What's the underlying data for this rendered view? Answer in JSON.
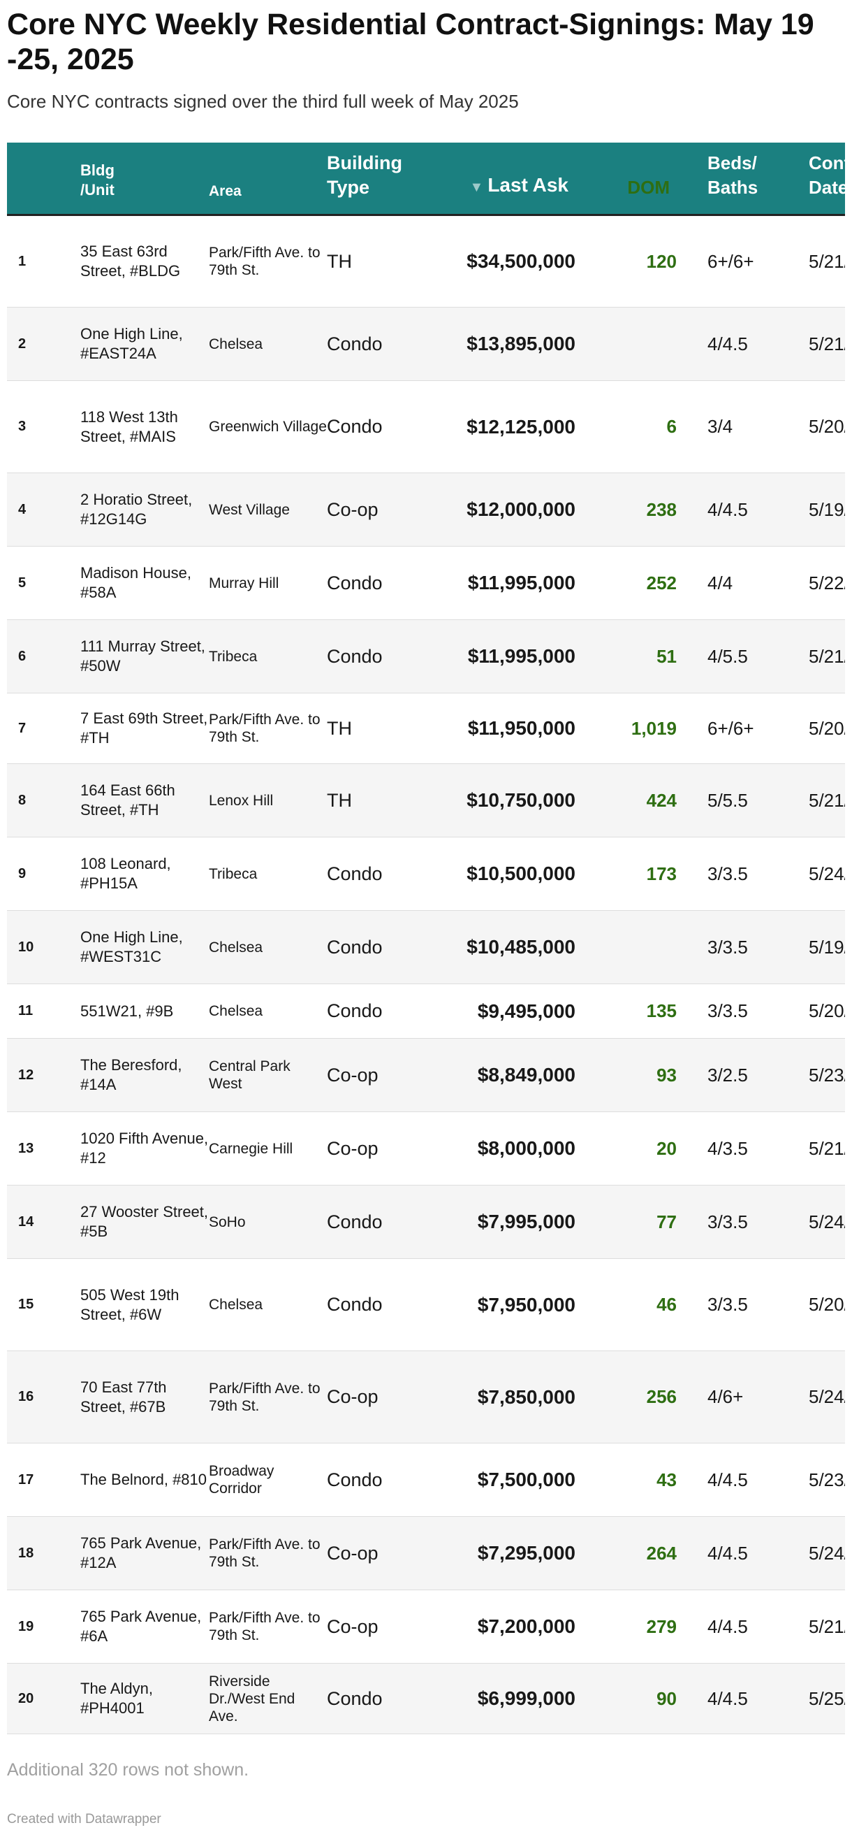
{
  "title": "Core NYC Weekly Residential Contract-Signings: May 19 -25, 2025",
  "subtitle": "Core NYC contracts signed over the third full week of May 2025",
  "columns": {
    "rank": "",
    "bldg": "Bldg /Unit",
    "area": "Area",
    "type": "Building Type",
    "ask": "Last Ask",
    "dom": "DOM",
    "beds": "Beds/ Baths",
    "date": "Contract Date"
  },
  "sort_indicator": "▼",
  "rows": [
    {
      "rank": "1",
      "bldg": "35 East 63rd Street, #BLDG",
      "area": "Park/Fifth Ave. to 79th St.",
      "type": "TH",
      "ask": "$34,500,000",
      "dom": "120",
      "beds": "6+/6+",
      "date": "5/21/"
    },
    {
      "rank": "2",
      "bldg": "One High Line, #EAST24A",
      "area": "Chelsea",
      "type": "Condo",
      "ask": "$13,895,000",
      "dom": "",
      "beds": "4/4.5",
      "date": "5/21/"
    },
    {
      "rank": "3",
      "bldg": "118 West 13th Street, #MAIS",
      "area": "Greenwich Village",
      "type": "Condo",
      "ask": "$12,125,000",
      "dom": "6",
      "beds": "3/4",
      "date": "5/20/"
    },
    {
      "rank": "4",
      "bldg": "2 Horatio Street, #12G14G",
      "area": "West Village",
      "type": "Co-op",
      "ask": "$12,000,000",
      "dom": "238",
      "beds": "4/4.5",
      "date": "5/19/"
    },
    {
      "rank": "5",
      "bldg": "Madison House, #58A",
      "area": "Murray Hill",
      "type": "Condo",
      "ask": "$11,995,000",
      "dom": "252",
      "beds": "4/4",
      "date": "5/22/"
    },
    {
      "rank": "6",
      "bldg": "111 Murray Street, #50W",
      "area": "Tribeca",
      "type": "Condo",
      "ask": "$11,995,000",
      "dom": "51",
      "beds": "4/5.5",
      "date": "5/21/"
    },
    {
      "rank": "7",
      "bldg": "7 East 69th Street, #TH",
      "area": "Park/Fifth Ave. to 79th St.",
      "type": "TH",
      "ask": "$11,950,000",
      "dom": "1,019",
      "beds": "6+/6+",
      "date": "5/20/"
    },
    {
      "rank": "8",
      "bldg": "164 East 66th Street, #TH",
      "area": "Lenox Hill",
      "type": "TH",
      "ask": "$10,750,000",
      "dom": "424",
      "beds": "5/5.5",
      "date": "5/21/"
    },
    {
      "rank": "9",
      "bldg": "108 Leonard, #PH15A",
      "area": "Tribeca",
      "type": "Condo",
      "ask": "$10,500,000",
      "dom": "173",
      "beds": "3/3.5",
      "date": "5/24/"
    },
    {
      "rank": "10",
      "bldg": "One High Line, #WEST31C",
      "area": "Chelsea",
      "type": "Condo",
      "ask": "$10,485,000",
      "dom": "",
      "beds": "3/3.5",
      "date": "5/19/"
    },
    {
      "rank": "11",
      "bldg": "551W21, #9B",
      "area": "Chelsea",
      "type": "Condo",
      "ask": "$9,495,000",
      "dom": "135",
      "beds": "3/3.5",
      "date": "5/20/"
    },
    {
      "rank": "12",
      "bldg": "The Beresford, #14A",
      "area": "Central Park West",
      "type": "Co-op",
      "ask": "$8,849,000",
      "dom": "93",
      "beds": "3/2.5",
      "date": "5/23/"
    },
    {
      "rank": "13",
      "bldg": "1020 Fifth Avenue, #12",
      "area": "Carnegie Hill",
      "type": "Co-op",
      "ask": "$8,000,000",
      "dom": "20",
      "beds": "4/3.5",
      "date": "5/21/"
    },
    {
      "rank": "14",
      "bldg": "27 Wooster Street, #5B",
      "area": "SoHo",
      "type": "Condo",
      "ask": "$7,995,000",
      "dom": "77",
      "beds": "3/3.5",
      "date": "5/24/"
    },
    {
      "rank": "15",
      "bldg": "505 West 19th Street, #6W",
      "area": "Chelsea",
      "type": "Condo",
      "ask": "$7,950,000",
      "dom": "46",
      "beds": "3/3.5",
      "date": "5/20/"
    },
    {
      "rank": "16",
      "bldg": "70 East 77th Street, #67B",
      "area": "Park/Fifth Ave. to 79th St.",
      "type": "Co-op",
      "ask": "$7,850,000",
      "dom": "256",
      "beds": "4/6+",
      "date": "5/24/"
    },
    {
      "rank": "17",
      "bldg": "The Belnord, #810",
      "area": "Broadway Corridor",
      "type": "Condo",
      "ask": "$7,500,000",
      "dom": "43",
      "beds": "4/4.5",
      "date": "5/23/"
    },
    {
      "rank": "18",
      "bldg": "765 Park Avenue, #12A",
      "area": "Park/Fifth Ave. to 79th St.",
      "type": "Co-op",
      "ask": "$7,295,000",
      "dom": "264",
      "beds": "4/4.5",
      "date": "5/24/"
    },
    {
      "rank": "19",
      "bldg": "765 Park Avenue, #6A",
      "area": "Park/Fifth Ave. to 79th St.",
      "type": "Co-op",
      "ask": "$7,200,000",
      "dom": "279",
      "beds": "4/4.5",
      "date": "5/21/"
    },
    {
      "rank": "20",
      "bldg": "The Aldyn, #PH4001",
      "area": "Riverside Dr./West End Ave.",
      "type": "Condo",
      "ask": "$6,999,000",
      "dom": "90",
      "beds": "4/4.5",
      "date": "5/25/"
    }
  ],
  "footer_note": "Additional 320 rows not shown.",
  "credit": "Created with Datawrapper",
  "colors": {
    "header_bg": "#1b8080",
    "dom_text": "#2e6e12"
  }
}
